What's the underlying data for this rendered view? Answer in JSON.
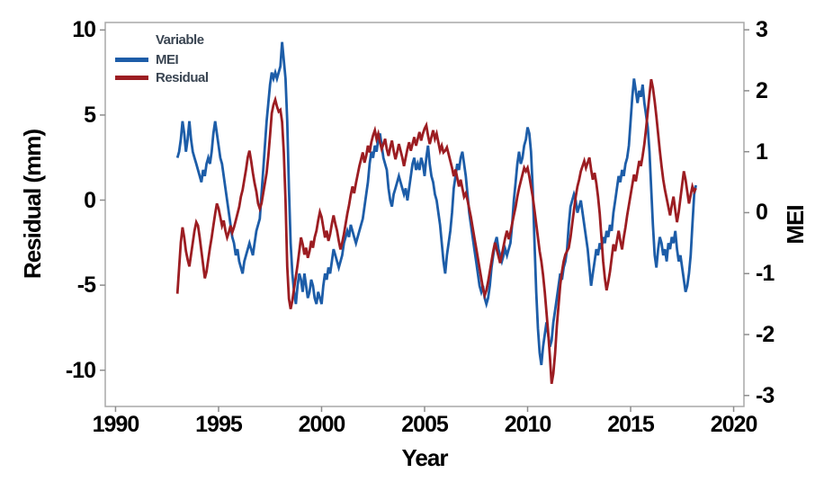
{
  "colors": {
    "mei": "#1d5da8",
    "residual": "#9c1d22",
    "frame": "#a9a9a9",
    "tick": "#8c8c8c",
    "tick_label": "#000000",
    "legend_text": "#3a4552"
  },
  "chart_data": {
    "type": "line",
    "title": "",
    "grid": false,
    "legend_position": "top-left-inside",
    "axes": {
      "x": {
        "label": "Year",
        "min": 1989.5,
        "max": 2020.5
      },
      "left": {
        "label": "Residual (mm)",
        "min": -12.13,
        "max": 10.44
      },
      "right": {
        "label": "MEI",
        "min": -3.18,
        "max": 3.12
      }
    },
    "x_ticks": [
      1990,
      1995,
      2000,
      2005,
      2010,
      2015,
      2020
    ],
    "y_left_ticks": [
      10,
      5,
      0,
      -5,
      -10
    ],
    "y_right_ticks": [
      3,
      2,
      1,
      0,
      -1,
      -2,
      -3
    ],
    "legend": {
      "title": "Variable",
      "entries": [
        {
          "label": "MEI",
          "color": "#1d5da8"
        },
        {
          "label": "Residual",
          "color": "#9c1d22"
        }
      ]
    },
    "series": [
      {
        "name": "MEI",
        "axis": "right",
        "color": "#1d5da8",
        "start_year": 1993.0,
        "interval_years": 0.0833333,
        "values": [
          0.9,
          1.0,
          1.2,
          1.5,
          1.3,
          1.0,
          1.2,
          1.5,
          1.2,
          1.0,
          0.9,
          0.8,
          0.7,
          0.6,
          0.5,
          0.7,
          0.6,
          0.8,
          0.9,
          0.8,
          1.0,
          1.3,
          1.5,
          1.3,
          1.1,
          0.9,
          0.8,
          0.6,
          0.4,
          0.2,
          0.0,
          -0.2,
          -0.4,
          -0.5,
          -0.7,
          -0.6,
          -0.8,
          -0.9,
          -1.0,
          -0.8,
          -0.7,
          -0.6,
          -0.5,
          -0.6,
          -0.7,
          -0.5,
          -0.3,
          -0.2,
          -0.1,
          0.3,
          0.7,
          1.1,
          1.5,
          1.8,
          2.1,
          2.3,
          2.2,
          2.3,
          2.2,
          2.3,
          2.4,
          2.8,
          2.5,
          2.2,
          1.5,
          0.4,
          -0.5,
          -1.0,
          -1.3,
          -1.5,
          -1.2,
          -1.0,
          -1.1,
          -1.3,
          -1.0,
          -1.2,
          -1.4,
          -1.3,
          -1.1,
          -1.2,
          -1.4,
          -1.5,
          -1.3,
          -1.4,
          -1.5,
          -1.2,
          -1.0,
          -1.1,
          -0.9,
          -1.0,
          -0.8,
          -0.6,
          -0.7,
          -0.8,
          -0.9,
          -0.8,
          -0.7,
          -0.5,
          -0.4,
          -0.3,
          -0.4,
          -0.2,
          -0.3,
          -0.4,
          -0.5,
          -0.4,
          -0.3,
          -0.2,
          -0.1,
          0.1,
          0.3,
          0.5,
          0.8,
          1.0,
          0.9,
          1.1,
          1.0,
          1.2,
          1.3,
          1.1,
          0.9,
          0.8,
          0.7,
          0.4,
          0.2,
          0.1,
          0.3,
          0.4,
          0.5,
          0.6,
          0.5,
          0.4,
          0.3,
          0.4,
          0.2,
          0.4,
          0.6,
          0.8,
          0.9,
          0.7,
          0.8,
          0.7,
          0.9,
          0.8,
          0.6,
          0.9,
          1.1,
          0.8,
          0.6,
          0.5,
          0.3,
          0.2,
          0.0,
          -0.2,
          -0.5,
          -0.8,
          -1.0,
          -0.7,
          -0.5,
          -0.3,
          0.0,
          0.4,
          0.6,
          0.8,
          0.7,
          0.9,
          1.0,
          0.8,
          0.6,
          0.3,
          0.0,
          -0.2,
          -0.4,
          -0.6,
          -0.8,
          -1.0,
          -1.2,
          -1.3,
          -1.2,
          -1.4,
          -1.5,
          -1.4,
          -1.2,
          -0.9,
          -0.7,
          -0.5,
          -0.4,
          -0.6,
          -0.7,
          -0.8,
          -0.7,
          -0.6,
          -0.7,
          -0.6,
          -0.5,
          -0.2,
          0.2,
          0.5,
          0.8,
          1.0,
          0.8,
          0.9,
          1.1,
          1.2,
          1.4,
          1.3,
          1.0,
          0.4,
          -0.5,
          -1.3,
          -1.9,
          -2.3,
          -2.5,
          -2.2,
          -2.0,
          -1.8,
          -2.0,
          -2.2,
          -2.1,
          -1.8,
          -1.6,
          -1.4,
          -1.2,
          -1.0,
          -1.1,
          -0.9,
          -0.8,
          -0.6,
          -0.2,
          0.1,
          0.2,
          0.3,
          0.2,
          0.0,
          0.1,
          0.2,
          0.0,
          -0.2,
          -0.4,
          -0.6,
          -0.9,
          -1.2,
          -1.0,
          -0.8,
          -0.6,
          -0.7,
          -0.5,
          -0.6,
          -0.4,
          -0.5,
          -0.3,
          -0.4,
          -0.2,
          -0.3,
          0.0,
          0.2,
          0.4,
          0.6,
          0.5,
          0.7,
          0.6,
          0.8,
          0.9,
          1.1,
          1.5,
          1.9,
          2.2,
          2.0,
          1.8,
          2.0,
          1.9,
          2.1,
          1.8,
          1.6,
          1.4,
          1.0,
          0.4,
          -0.2,
          -0.7,
          -0.9,
          -0.6,
          -0.4,
          -0.5,
          -0.7,
          -0.6,
          -0.8,
          -0.5,
          -0.6,
          -0.4,
          -0.5,
          -0.3,
          -0.6,
          -0.8,
          -0.7,
          -0.9,
          -1.1,
          -1.3,
          -1.2,
          -1.0,
          -0.7,
          -0.2,
          0.3,
          0.45
        ]
      },
      {
        "name": "Residual",
        "axis": "left",
        "color": "#9c1d22",
        "start_year": 1993.0,
        "interval_years": 0.0833333,
        "values": [
          -5.5,
          -4.0,
          -2.5,
          -1.6,
          -2.2,
          -3.0,
          -3.5,
          -3.9,
          -3.2,
          -2.5,
          -1.8,
          -1.3,
          -1.5,
          -2.2,
          -3.0,
          -3.8,
          -4.6,
          -4.2,
          -3.5,
          -2.8,
          -2.2,
          -1.5,
          -0.8,
          -0.2,
          -0.5,
          -1.0,
          -1.5,
          -1.2,
          -1.8,
          -2.2,
          -1.9,
          -1.5,
          -1.9,
          -1.6,
          -1.2,
          -0.8,
          -0.4,
          0.2,
          0.6,
          1.2,
          1.8,
          2.5,
          2.9,
          2.3,
          1.6,
          1.0,
          0.5,
          -0.2,
          -0.5,
          -0.2,
          0.4,
          1.0,
          1.6,
          2.6,
          3.8,
          5.1,
          5.6,
          5.9,
          5.5,
          5.2,
          5.3,
          4.6,
          2.8,
          0.0,
          -3.9,
          -5.8,
          -6.4,
          -5.9,
          -5.2,
          -4.5,
          -3.8,
          -3.0,
          -2.2,
          -2.6,
          -3.2,
          -2.8,
          -3.4,
          -3.0,
          -2.4,
          -2.8,
          -2.2,
          -1.8,
          -1.2,
          -0.7,
          -1.0,
          -1.6,
          -2.2,
          -1.8,
          -2.4,
          -2.0,
          -1.4,
          -0.9,
          -1.4,
          -1.8,
          -2.4,
          -2.9,
          -2.5,
          -2.0,
          -1.4,
          -0.8,
          -0.3,
          0.3,
          0.8,
          0.4,
          1.0,
          1.5,
          2.0,
          2.4,
          2.8,
          2.2,
          2.6,
          3.2,
          2.8,
          3.4,
          3.8,
          4.1,
          3.6,
          3.9,
          3.4,
          3.0,
          3.3,
          3.6,
          3.0,
          2.6,
          3.1,
          3.5,
          2.9,
          2.4,
          2.8,
          3.3,
          2.9,
          2.5,
          2.0,
          2.5,
          3.0,
          3.4,
          2.9,
          3.3,
          3.7,
          3.2,
          3.6,
          4.0,
          3.5,
          3.9,
          4.2,
          4.4,
          3.8,
          3.3,
          3.7,
          4.1,
          3.6,
          3.9,
          3.4,
          2.9,
          3.2,
          2.8,
          2.9,
          3.1,
          2.7,
          2.3,
          1.9,
          1.4,
          1.8,
          1.3,
          0.8,
          1.2,
          0.7,
          0.2,
          0.4,
          0.0,
          -0.5,
          -1.0,
          -1.6,
          -2.2,
          -2.8,
          -3.4,
          -4.0,
          -4.6,
          -5.2,
          -5.6,
          -5.3,
          -4.8,
          -4.2,
          -3.6,
          -3.0,
          -2.5,
          -2.9,
          -3.3,
          -3.7,
          -3.2,
          -2.7,
          -2.2,
          -1.8,
          -2.3,
          -1.9,
          -1.4,
          -0.9,
          -0.4,
          0.2,
          0.7,
          1.1,
          1.5,
          1.9,
          1.7,
          1.9,
          1.4,
          0.8,
          0.2,
          -0.6,
          -1.4,
          -2.2,
          -3.0,
          -3.6,
          -4.4,
          -5.4,
          -6.6,
          -7.8,
          -9.2,
          -10.8,
          -10.2,
          -9.0,
          -7.4,
          -6.2,
          -5.0,
          -4.2,
          -3.6,
          -3.2,
          -3.0,
          -2.8,
          -2.2,
          -1.4,
          -0.6,
          0.2,
          0.8,
          1.2,
          1.7,
          2.0,
          2.3,
          1.9,
          2.2,
          2.5,
          1.8,
          1.2,
          1.6,
          1.0,
          0.2,
          -0.8,
          -2.2,
          -3.6,
          -4.6,
          -5.3,
          -4.8,
          -4.2,
          -3.4,
          -2.6,
          -3.0,
          -2.4,
          -1.8,
          -2.4,
          -2.9,
          -2.2,
          -1.6,
          -0.9,
          -0.3,
          0.3,
          0.9,
          1.5,
          1.1,
          1.7,
          2.3,
          2.0,
          2.6,
          3.3,
          4.2,
          5.2,
          6.2,
          7.1,
          6.6,
          5.8,
          4.9,
          3.9,
          2.9,
          2.0,
          1.2,
          0.6,
          0.1,
          -0.4,
          -0.9,
          -0.3,
          0.2,
          -0.6,
          -1.3,
          -0.7,
          0.1,
          0.9,
          1.7,
          1.2,
          0.5,
          -0.2,
          0.3,
          0.8,
          0.5,
          0.7
        ]
      }
    ]
  }
}
